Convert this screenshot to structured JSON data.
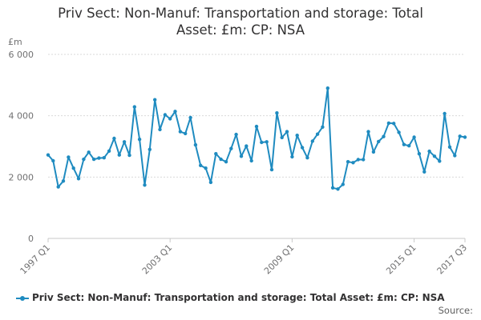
{
  "chart_data": {
    "type": "line",
    "title_line1": "Priv Sect: Non-Manuf: Transportation and storage: Total",
    "title_line2": "Asset: £m: CP: NSA",
    "ylabel": "£m",
    "ylim": [
      0,
      6000
    ],
    "yticks": [
      0,
      2000,
      4000,
      6000
    ],
    "ytick_labels": [
      "0",
      "2 000",
      "4 000",
      "6 000"
    ],
    "xtick_labels": [
      "1997 Q1",
      "2003 Q1",
      "2009 Q1",
      "2015 Q1",
      "2017 Q3"
    ],
    "xtick_index": [
      0,
      24,
      48,
      72,
      82
    ],
    "grid": true,
    "legend_position": "bottom-left",
    "series": [
      {
        "name": "Priv Sect: Non-Manuf: Transportation and storage: Total Asset: £m: CP: NSA",
        "color": "#1f8bc0",
        "values": [
          2720,
          2530,
          1680,
          1870,
          2650,
          2290,
          1950,
          2580,
          2810,
          2580,
          2620,
          2630,
          2850,
          3260,
          2720,
          3150,
          2710,
          4290,
          3230,
          1740,
          2900,
          4520,
          3550,
          4030,
          3900,
          4140,
          3480,
          3420,
          3940,
          3050,
          2380,
          2290,
          1830,
          2760,
          2580,
          2500,
          2930,
          3390,
          2680,
          3010,
          2530,
          3650,
          3130,
          3150,
          2240,
          4090,
          3290,
          3480,
          2660,
          3360,
          2960,
          2630,
          3170,
          3400,
          3630,
          4900,
          1650,
          1610,
          1760,
          2500,
          2470,
          2570,
          2570,
          3480,
          2820,
          3160,
          3320,
          3760,
          3750,
          3460,
          3060,
          3020,
          3300,
          2760,
          2170,
          2840,
          2680,
          2520,
          4070,
          2980,
          2700,
          3330,
          3300
        ]
      }
    ]
  },
  "footer": {
    "source_label": "Source:"
  }
}
